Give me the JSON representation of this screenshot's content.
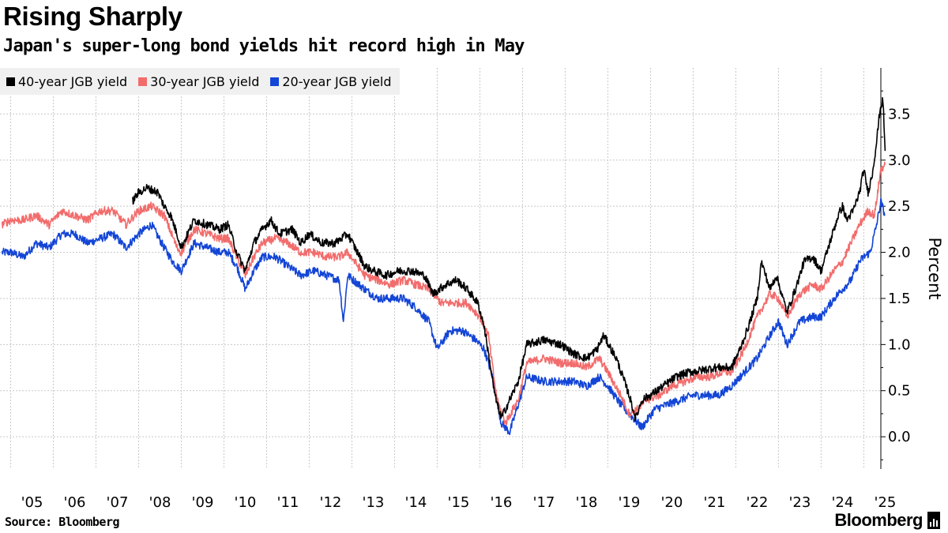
{
  "header": {
    "title": "Rising Sharply",
    "subtitle": "Japan's super-long bond yields hit record high in May"
  },
  "footer": {
    "source": "Source: Bloomberg",
    "brand": "Bloomberg"
  },
  "chart_data": {
    "type": "line",
    "ylabel": "Percent",
    "xlabel": "",
    "ylim": [
      -0.35,
      4.0
    ],
    "xlim": [
      2004.75,
      2025.4
    ],
    "y_ticks": [
      0.0,
      0.5,
      1.0,
      1.5,
      2.0,
      2.5,
      3.0,
      3.5
    ],
    "y_tick_labels": [
      "0.0",
      "0.5",
      "1.0",
      "1.5",
      "2.0",
      "2.5",
      "3.0",
      "3.5"
    ],
    "x_ticks": [
      2005,
      2006,
      2007,
      2008,
      2009,
      2010,
      2011,
      2012,
      2013,
      2014,
      2015,
      2016,
      2017,
      2018,
      2019,
      2020,
      2021,
      2022,
      2023,
      2024,
      2025
    ],
    "x_tick_labels": [
      "'05",
      "'06",
      "'07",
      "'08",
      "'09",
      "'10",
      "'11",
      "'12",
      "'13",
      "'14",
      "'15",
      "'16",
      "'17",
      "'18",
      "'19",
      "'20",
      "'21",
      "'22",
      "'23",
      "'24",
      "'25"
    ],
    "grid": true,
    "legend_position": "top-left",
    "colors": {
      "s40": "#000000",
      "s30": "#f26c6c",
      "s20": "#1345d6"
    },
    "series": [
      {
        "name": "40-year JGB yield",
        "color": "#000000",
        "x": [
          2007.85,
          2008.0,
          2008.2,
          2008.45,
          2008.6,
          2008.75,
          2008.9,
          2009.0,
          2009.3,
          2009.6,
          2009.9,
          2010.1,
          2010.3,
          2010.5,
          2010.7,
          2010.9,
          2011.1,
          2011.3,
          2011.6,
          2011.8,
          2012.0,
          2012.3,
          2012.6,
          2012.9,
          2013.3,
          2013.5,
          2013.8,
          2014.1,
          2014.4,
          2014.7,
          2014.9,
          2015.2,
          2015.45,
          2015.7,
          2015.95,
          2016.1,
          2016.35,
          2016.5,
          2016.7,
          2016.9,
          2017.1,
          2017.5,
          2017.9,
          2018.2,
          2018.5,
          2018.75,
          2018.9,
          2019.2,
          2019.5,
          2019.65,
          2019.8,
          2020.0,
          2020.3,
          2020.6,
          2020.9,
          2021.2,
          2021.5,
          2021.9,
          2022.1,
          2022.3,
          2022.5,
          2022.6,
          2022.8,
          2022.95,
          2023.2,
          2023.4,
          2023.6,
          2023.8,
          2024.0,
          2024.2,
          2024.4,
          2024.5,
          2024.6,
          2024.75,
          2024.9,
          2025.0,
          2025.1,
          2025.2,
          2025.3,
          2025.38,
          2025.45,
          2025.5
        ],
        "values": [
          2.55,
          2.65,
          2.7,
          2.65,
          2.5,
          2.4,
          2.2,
          2.05,
          2.35,
          2.3,
          2.25,
          2.3,
          2.0,
          1.8,
          2.1,
          2.25,
          2.35,
          2.2,
          2.25,
          2.1,
          2.2,
          2.1,
          2.1,
          2.2,
          1.85,
          1.8,
          1.75,
          1.8,
          1.8,
          1.75,
          1.55,
          1.65,
          1.7,
          1.6,
          1.45,
          1.2,
          0.45,
          0.2,
          0.4,
          0.6,
          1.0,
          1.05,
          1.0,
          0.9,
          0.85,
          0.95,
          1.1,
          0.85,
          0.45,
          0.2,
          0.4,
          0.45,
          0.55,
          0.65,
          0.7,
          0.72,
          0.75,
          0.75,
          0.95,
          1.2,
          1.5,
          1.9,
          1.6,
          1.75,
          1.35,
          1.6,
          1.9,
          1.95,
          1.8,
          2.1,
          2.4,
          2.5,
          2.35,
          2.45,
          2.65,
          2.9,
          2.65,
          2.85,
          3.2,
          3.55,
          3.65,
          3.1
        ]
      },
      {
        "name": "30-year JGB yield",
        "color": "#f26c6c",
        "x": [
          2004.8,
          2005.0,
          2005.3,
          2005.6,
          2005.9,
          2006.2,
          2006.5,
          2006.8,
          2007.1,
          2007.4,
          2007.7,
          2008.0,
          2008.3,
          2008.6,
          2008.9,
          2009.0,
          2009.3,
          2009.6,
          2009.9,
          2010.1,
          2010.3,
          2010.5,
          2010.7,
          2010.9,
          2011.2,
          2011.5,
          2011.8,
          2012.1,
          2012.4,
          2012.7,
          2012.9,
          2013.3,
          2013.6,
          2013.9,
          2014.2,
          2014.5,
          2014.8,
          2015.1,
          2015.4,
          2015.7,
          2016.0,
          2016.2,
          2016.4,
          2016.6,
          2016.9,
          2017.1,
          2017.5,
          2017.9,
          2018.2,
          2018.5,
          2018.8,
          2019.0,
          2019.3,
          2019.5,
          2019.7,
          2019.9,
          2020.2,
          2020.5,
          2020.8,
          2021.1,
          2021.4,
          2021.7,
          2021.9,
          2022.2,
          2022.5,
          2022.8,
          2023.0,
          2023.2,
          2023.5,
          2023.8,
          2024.0,
          2024.3,
          2024.5,
          2024.7,
          2024.9,
          2025.1,
          2025.25,
          2025.4,
          2025.5
        ],
        "values": [
          2.3,
          2.35,
          2.35,
          2.4,
          2.3,
          2.45,
          2.4,
          2.35,
          2.45,
          2.45,
          2.3,
          2.45,
          2.5,
          2.4,
          2.05,
          2.0,
          2.25,
          2.2,
          2.15,
          2.15,
          1.95,
          1.75,
          1.95,
          2.1,
          2.15,
          2.1,
          2.0,
          2.0,
          1.95,
          1.95,
          2.0,
          1.75,
          1.7,
          1.65,
          1.7,
          1.65,
          1.6,
          1.45,
          1.45,
          1.45,
          1.3,
          1.1,
          0.4,
          0.15,
          0.4,
          0.8,
          0.85,
          0.8,
          0.8,
          0.75,
          0.85,
          0.7,
          0.45,
          0.25,
          0.3,
          0.4,
          0.45,
          0.55,
          0.6,
          0.65,
          0.65,
          0.7,
          0.7,
          0.95,
          1.3,
          1.55,
          1.5,
          1.3,
          1.55,
          1.65,
          1.6,
          1.8,
          1.9,
          2.1,
          2.3,
          2.45,
          2.4,
          2.9,
          2.95
        ]
      },
      {
        "name": "20-year JGB yield",
        "color": "#1345d6",
        "x": [
          2004.8,
          2005.0,
          2005.3,
          2005.6,
          2005.9,
          2006.2,
          2006.5,
          2006.8,
          2007.1,
          2007.4,
          2007.7,
          2008.0,
          2008.3,
          2008.6,
          2008.8,
          2009.0,
          2009.3,
          2009.6,
          2009.9,
          2010.1,
          2010.3,
          2010.5,
          2010.7,
          2010.9,
          2011.2,
          2011.5,
          2011.8,
          2012.1,
          2012.4,
          2012.7,
          2012.8,
          2012.9,
          2013.3,
          2013.6,
          2013.9,
          2014.2,
          2014.5,
          2014.8,
          2015.0,
          2015.3,
          2015.6,
          2015.9,
          2016.1,
          2016.3,
          2016.5,
          2016.7,
          2016.9,
          2017.1,
          2017.5,
          2017.9,
          2018.2,
          2018.5,
          2018.8,
          2019.0,
          2019.3,
          2019.6,
          2019.8,
          2020.1,
          2020.4,
          2020.7,
          2021.0,
          2021.3,
          2021.6,
          2021.9,
          2022.2,
          2022.5,
          2022.8,
          2023.0,
          2023.2,
          2023.5,
          2023.8,
          2024.0,
          2024.3,
          2024.5,
          2024.7,
          2024.9,
          2025.0,
          2025.15,
          2025.3,
          2025.4,
          2025.5
        ],
        "values": [
          2.0,
          2.0,
          1.95,
          2.1,
          2.05,
          2.2,
          2.2,
          2.1,
          2.15,
          2.2,
          2.05,
          2.2,
          2.3,
          2.05,
          1.9,
          1.8,
          2.1,
          2.05,
          2.0,
          2.0,
          1.85,
          1.6,
          1.8,
          1.95,
          1.95,
          1.85,
          1.75,
          1.8,
          1.75,
          1.7,
          1.25,
          1.75,
          1.6,
          1.5,
          1.5,
          1.5,
          1.4,
          1.25,
          0.95,
          1.15,
          1.15,
          1.05,
          0.95,
          0.65,
          0.15,
          0.05,
          0.35,
          0.65,
          0.6,
          0.6,
          0.6,
          0.55,
          0.65,
          0.55,
          0.35,
          0.2,
          0.1,
          0.3,
          0.35,
          0.4,
          0.45,
          0.45,
          0.45,
          0.55,
          0.7,
          0.85,
          1.1,
          1.25,
          1.0,
          1.25,
          1.3,
          1.3,
          1.5,
          1.6,
          1.7,
          1.9,
          1.95,
          2.0,
          2.3,
          2.55,
          2.4
        ]
      }
    ]
  }
}
